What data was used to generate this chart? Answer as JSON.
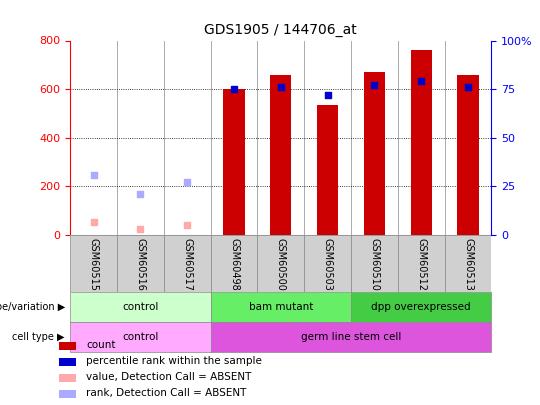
{
  "title": "GDS1905 / 144706_at",
  "samples": [
    "GSM60515",
    "GSM60516",
    "GSM60517",
    "GSM60498",
    "GSM60500",
    "GSM60503",
    "GSM60510",
    "GSM60512",
    "GSM60513"
  ],
  "count_values": [
    null,
    null,
    null,
    600,
    660,
    535,
    670,
    760,
    660
  ],
  "rank_values_pct": [
    null,
    null,
    null,
    75,
    76,
    72,
    77,
    79,
    76
  ],
  "absent_count_values": [
    55,
    25,
    40,
    null,
    null,
    null,
    null,
    null,
    null
  ],
  "absent_rank_values_pct": [
    31,
    21,
    27,
    null,
    null,
    null,
    null,
    null,
    null
  ],
  "ylim_left": [
    0,
    800
  ],
  "ylim_right": [
    0,
    100
  ],
  "yticks_left": [
    0,
    200,
    400,
    600,
    800
  ],
  "yticks_right": [
    0,
    25,
    50,
    75,
    100
  ],
  "bar_color": "#cc0000",
  "rank_color": "#0000cc",
  "absent_count_color": "#ffaaaa",
  "absent_rank_color": "#aaaaff",
  "genotype_groups": [
    {
      "label": "control",
      "start": 0,
      "end": 3,
      "color": "#ccffcc"
    },
    {
      "label": "bam mutant",
      "start": 3,
      "end": 6,
      "color": "#66ee66"
    },
    {
      "label": "dpp overexpressed",
      "start": 6,
      "end": 9,
      "color": "#44cc44"
    }
  ],
  "celltype_groups": [
    {
      "label": "control",
      "start": 0,
      "end": 3,
      "color": "#ffaaff"
    },
    {
      "label": "germ line stem cell",
      "start": 3,
      "end": 9,
      "color": "#dd55dd"
    }
  ],
  "legend_items": [
    {
      "label": "count",
      "color": "#cc0000"
    },
    {
      "label": "percentile rank within the sample",
      "color": "#0000cc"
    },
    {
      "label": "value, Detection Call = ABSENT",
      "color": "#ffaaaa"
    },
    {
      "label": "rank, Detection Call = ABSENT",
      "color": "#aaaaff"
    }
  ],
  "col_bg_color": "#d0d0d0",
  "col_line_color": "#888888"
}
